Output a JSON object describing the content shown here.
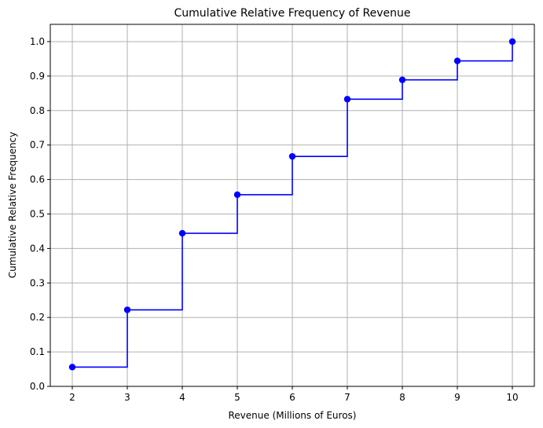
{
  "chart_data": {
    "type": "line",
    "step": "post",
    "title": "Cumulative Relative Frequency of Revenue",
    "xlabel": "Revenue (Millions of Euros)",
    "ylabel": "Cumulative Relative Frequency",
    "x": [
      2,
      3,
      4,
      5,
      6,
      7,
      8,
      9,
      10
    ],
    "y": [
      0.056,
      0.222,
      0.444,
      0.556,
      0.667,
      0.833,
      0.889,
      0.944,
      1.0
    ],
    "xlim": [
      1.6,
      10.4
    ],
    "ylim": [
      0.0,
      1.05
    ],
    "xticks": [
      2,
      3,
      4,
      5,
      6,
      7,
      8,
      9,
      10
    ],
    "yticks": [
      0.0,
      0.1,
      0.2,
      0.3,
      0.4,
      0.5,
      0.6,
      0.7,
      0.8,
      0.9,
      1.0
    ],
    "xtick_labels": [
      "2",
      "3",
      "4",
      "5",
      "6",
      "7",
      "8",
      "9",
      "10"
    ],
    "ytick_labels": [
      "0.0",
      "0.1",
      "0.2",
      "0.3",
      "0.4",
      "0.5",
      "0.6",
      "0.7",
      "0.8",
      "0.9",
      "1.0"
    ],
    "grid": true,
    "line_color": "#0000ff",
    "grid_color": "#b0b0b0",
    "marker": "circle"
  }
}
